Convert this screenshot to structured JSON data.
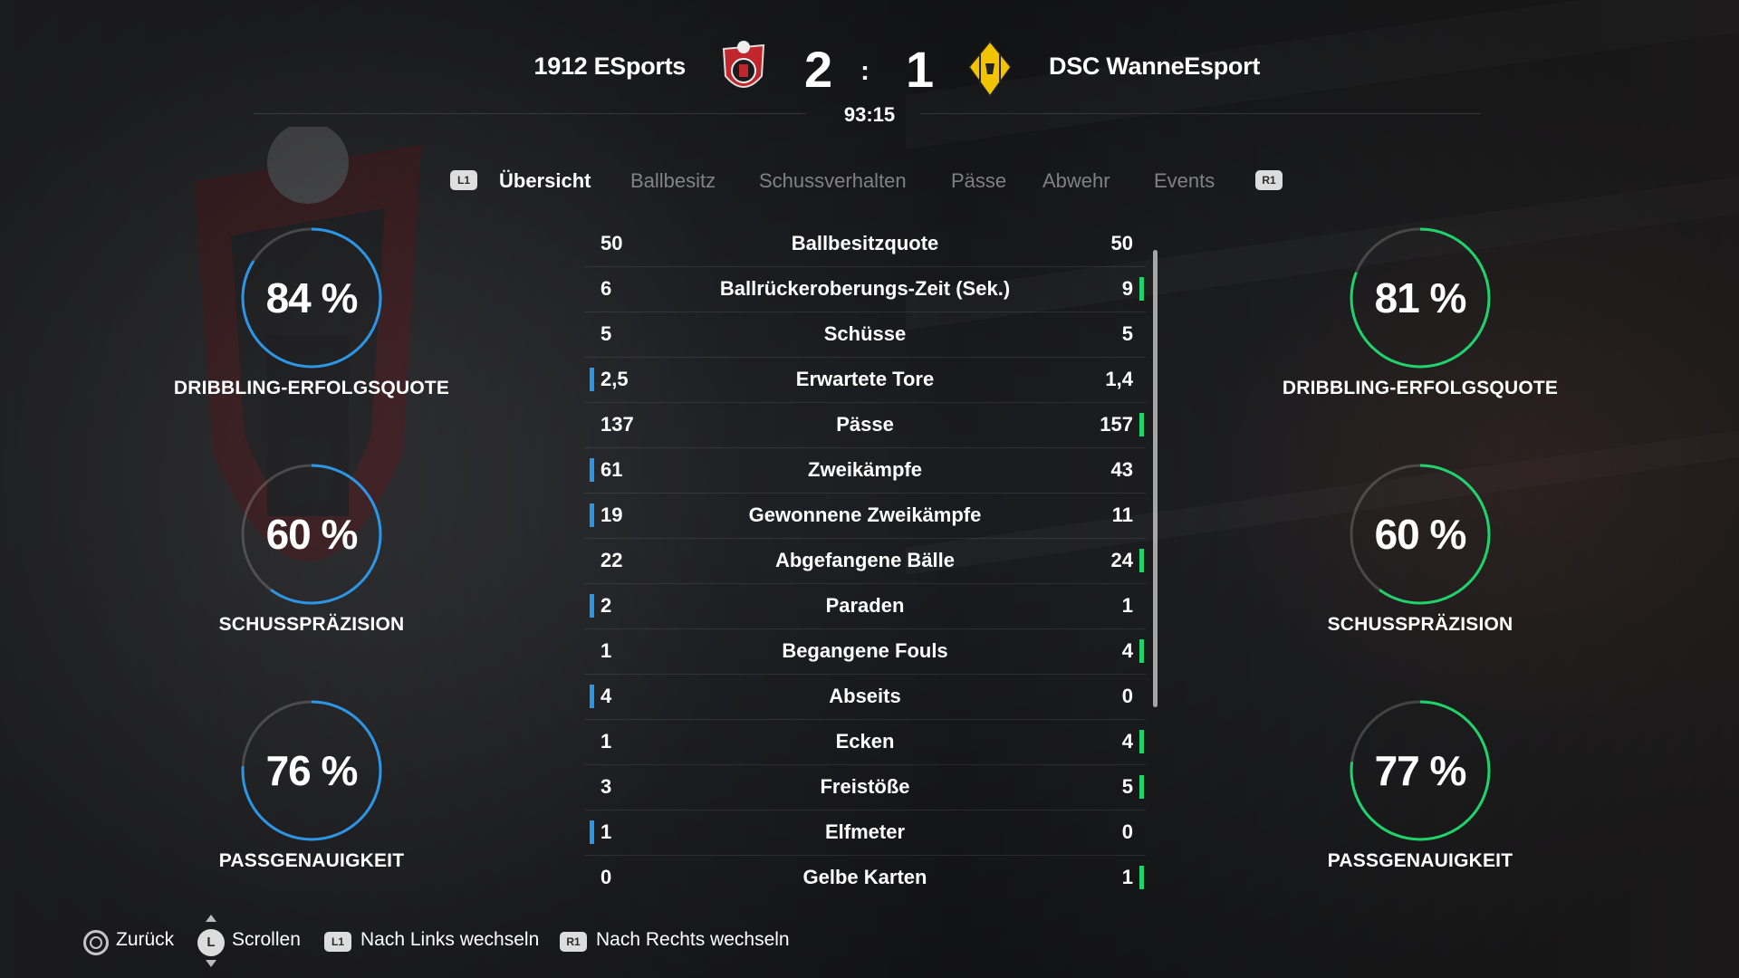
{
  "header": {
    "home_team": "1912 ESports",
    "away_team": "DSC WanneEsport",
    "home_score": "2",
    "separator": ":",
    "away_score": "1",
    "clock": "93:15"
  },
  "tabs": {
    "left_button": "L1",
    "right_button": "R1",
    "items": [
      "Übersicht",
      "Ballbesitz",
      "Schussverhalten",
      "Pässe",
      "Abwehr",
      "Events"
    ],
    "active": "Übersicht"
  },
  "home_rings": [
    {
      "value": "84 %",
      "percent": 84,
      "label": "DRIBBLING-ERFOLGSQUOTE"
    },
    {
      "value": "60 %",
      "percent": 60,
      "label": "SCHUSSPRÄZISION"
    },
    {
      "value": "76 %",
      "percent": 76,
      "label": "PASSGENAUIGKEIT"
    }
  ],
  "away_rings": [
    {
      "value": "81 %",
      "percent": 81,
      "label": "DRIBBLING-ERFOLGSQUOTE"
    },
    {
      "value": "60 %",
      "percent": 60,
      "label": "SCHUSSPRÄZISION"
    },
    {
      "value": "77 %",
      "percent": 77,
      "label": "PASSGENAUIGKEIT"
    }
  ],
  "stats": [
    {
      "home": "50",
      "name": "Ballbesitzquote",
      "away": "50",
      "leader": "none"
    },
    {
      "home": "6",
      "name": "Ballrückeroberungs-Zeit (Sek.)",
      "away": "9",
      "leader": "away"
    },
    {
      "home": "5",
      "name": "Schüsse",
      "away": "5",
      "leader": "none"
    },
    {
      "home": "2,5",
      "name": "Erwartete Tore",
      "away": "1,4",
      "leader": "home"
    },
    {
      "home": "137",
      "name": "Pässe",
      "away": "157",
      "leader": "away"
    },
    {
      "home": "61",
      "name": "Zweikämpfe",
      "away": "43",
      "leader": "home"
    },
    {
      "home": "19",
      "name": "Gewonnene Zweikämpfe",
      "away": "11",
      "leader": "home"
    },
    {
      "home": "22",
      "name": "Abgefangene Bälle",
      "away": "24",
      "leader": "away"
    },
    {
      "home": "2",
      "name": "Paraden",
      "away": "1",
      "leader": "home"
    },
    {
      "home": "1",
      "name": "Begangene Fouls",
      "away": "4",
      "leader": "away"
    },
    {
      "home": "4",
      "name": "Abseits",
      "away": "0",
      "leader": "home"
    },
    {
      "home": "1",
      "name": "Ecken",
      "away": "4",
      "leader": "away"
    },
    {
      "home": "3",
      "name": "Freistöße",
      "away": "5",
      "leader": "away"
    },
    {
      "home": "1",
      "name": "Elfmeter",
      "away": "0",
      "leader": "home"
    },
    {
      "home": "0",
      "name": "Gelbe Karten",
      "away": "1",
      "leader": "away"
    }
  ],
  "footer": {
    "back": "Zurück",
    "scroll_button": "L",
    "scroll": "Scrollen",
    "left_button": "L1",
    "switch_left": "Nach Links wechseln",
    "right_button": "R1",
    "switch_right": "Nach Rechts wechseln"
  },
  "colors": {
    "home_accent": "#2b95e6",
    "away_accent": "#1fd36c",
    "home_crest": "#c0262c",
    "away_crest": "#f2c400"
  }
}
